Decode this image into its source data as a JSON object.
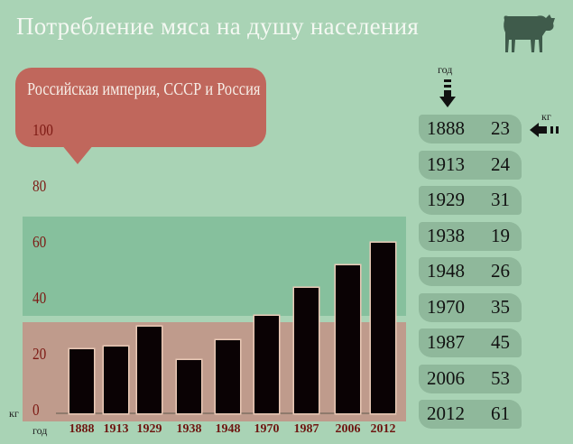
{
  "title": "Потребление мяса  на душу населения",
  "subtitle": "Российская империя, СССР и Россия",
  "icons": {
    "cow": "cow-icon",
    "year_arrow": "arrow-down-icon",
    "kg_arrow": "arrow-left-icon"
  },
  "colors": {
    "background": "#a9d3b5",
    "bubble": "#c0675c",
    "band_green": "#86c09d",
    "band_pink": "#bf9b8c",
    "bar": "#0a0204",
    "tick": "#7d1a14"
  },
  "chart_data": {
    "type": "bar",
    "title": "Потребление мяса  на душу населения",
    "subtitle": "Российская империя, СССР и Россия",
    "xlabel": "год",
    "ylabel": "кг",
    "categories": [
      "1888",
      "1913",
      "1929",
      "1938",
      "1948",
      "1970",
      "1987",
      "2006",
      "2012"
    ],
    "values": [
      23,
      24,
      31,
      19,
      26,
      35,
      45,
      53,
      61
    ],
    "yticks": [
      "0",
      "20",
      "40",
      "60",
      "80",
      "100"
    ],
    "ylim": [
      0,
      100
    ],
    "grid": false
  },
  "table": {
    "year_header": "год",
    "kg_header": "кг",
    "rows": [
      {
        "year": "1888",
        "kg": "23"
      },
      {
        "year": "1913",
        "kg": "24"
      },
      {
        "year": "1929",
        "kg": "31"
      },
      {
        "year": "1938",
        "kg": "19"
      },
      {
        "year": "1948",
        "kg": "26"
      },
      {
        "year": "1970",
        "kg": "35"
      },
      {
        "year": "1987",
        "kg": "45"
      },
      {
        "year": "2006",
        "kg": "53"
      },
      {
        "year": "2012",
        "kg": "61"
      }
    ]
  }
}
